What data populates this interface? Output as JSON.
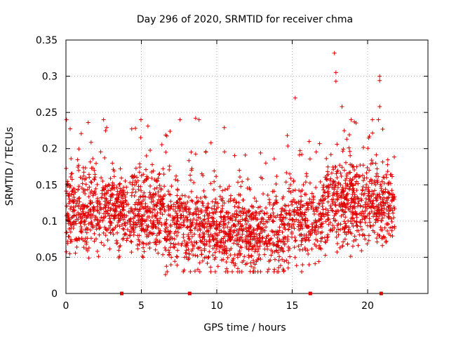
{
  "chart_data": {
    "type": "scatter",
    "title": "Day 296 of 2020, SRMTID for receiver chma",
    "xlabel": "GPS time / hours",
    "ylabel": "SRMTID / TECUs",
    "xlim": [
      0,
      24
    ],
    "ylim": [
      0,
      0.35
    ],
    "xticks": [
      0,
      5,
      10,
      15,
      20
    ],
    "xtick_labels": [
      "0",
      "5",
      "10",
      "15",
      "20"
    ],
    "yticks": [
      0,
      0.05,
      0.1,
      0.15,
      0.2,
      0.25,
      0.3,
      0.35
    ],
    "ytick_labels": [
      "0",
      "0.05",
      "0.1",
      "0.15",
      "0.2",
      "0.25",
      "0.3",
      "0.35"
    ],
    "grid": true,
    "marker": "+",
    "color": "#e00000",
    "flagged_times": [
      3.7,
      8.2,
      16.2,
      20.9
    ],
    "data_range_hours": [
      0,
      21.8
    ],
    "notable_points": [
      {
        "x": 15.2,
        "y": 0.27
      },
      {
        "x": 17.8,
        "y": 0.332
      },
      {
        "x": 17.9,
        "y": 0.305
      },
      {
        "x": 17.9,
        "y": 0.293
      },
      {
        "x": 18.3,
        "y": 0.258
      },
      {
        "x": 20.8,
        "y": 0.3
      },
      {
        "x": 20.8,
        "y": 0.294
      },
      {
        "x": 20.8,
        "y": 0.258
      },
      {
        "x": 8.6,
        "y": 0.242
      },
      {
        "x": 10.5,
        "y": 0.229
      },
      {
        "x": 2.7,
        "y": 0.229
      },
      {
        "x": 6.9,
        "y": 0.224
      },
      {
        "x": 6.6,
        "y": 0.026
      },
      {
        "x": 13.8,
        "y": 0.03
      }
    ]
  }
}
